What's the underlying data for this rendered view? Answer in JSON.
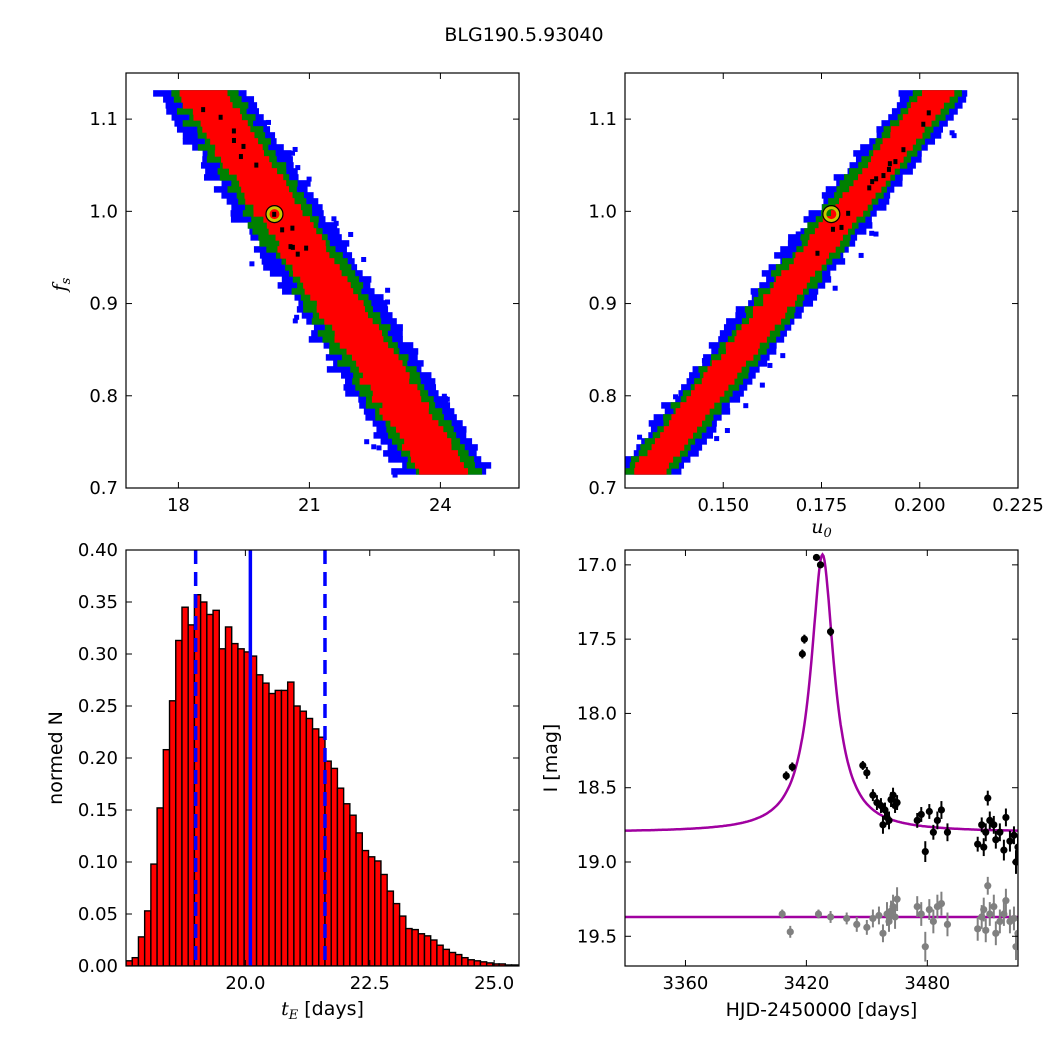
{
  "title": "BLG190.5.93040",
  "colors": {
    "blue": "#0000ff",
    "green": "#008000",
    "red": "#ff0000",
    "black": "#000000",
    "marker": "#c8c800",
    "model": "#a000a0",
    "gray": "#808080",
    "hist_fill": "#ff0000"
  },
  "chart_data": [
    {
      "type": "heatmap",
      "name": "fs-vs-tE",
      "xlabel": "",
      "ylabel": "f_s",
      "ylabel_display": "f",
      "ylabel_sub": "s",
      "xlim": [
        16.8,
        25.8
      ],
      "ylim": [
        0.7,
        1.15
      ],
      "xticks": [
        18,
        21,
        24
      ],
      "xtick_labels": [
        "18",
        "21",
        "24"
      ],
      "yticks": [
        0.7,
        0.8,
        0.9,
        1.0,
        1.1
      ],
      "ytick_labels": [
        "0.7",
        "0.8",
        "0.9",
        "1.0",
        "1.1"
      ],
      "band": {
        "fs_at_x0": 1.13,
        "x0": 18.5,
        "slope": -0.074,
        "widths_x": {
          "blue": 1.05,
          "green": 0.78,
          "red": 0.55
        },
        "fs_range": [
          0.715,
          1.13
        ]
      },
      "best_fit": {
        "x": 20.2,
        "y": 0.997
      }
    },
    {
      "type": "heatmap",
      "name": "fs-vs-u0",
      "xlabel": "u_0",
      "xlabel_display": "u",
      "xlabel_sub": "0",
      "ylabel": "",
      "xlim": [
        0.125,
        0.225
      ],
      "ylim": [
        0.7,
        1.15
      ],
      "xticks": [
        0.15,
        0.175,
        0.2,
        0.225
      ],
      "xtick_labels": [
        "0.150",
        "0.175",
        "0.200",
        "0.225"
      ],
      "yticks": [
        0.7,
        0.8,
        0.9,
        1.0,
        1.1
      ],
      "ytick_labels": [
        "0.7",
        "0.8",
        "0.9",
        "1.0",
        "1.1"
      ],
      "band": {
        "fs_at_x0": 0.72,
        "x0": 0.132,
        "slope": 5.6,
        "widths_x": {
          "blue": 0.0085,
          "green": 0.0063,
          "red": 0.0042
        },
        "fs_range": [
          0.715,
          1.13
        ]
      },
      "best_fit": {
        "x": 0.1775,
        "y": 0.997
      }
    },
    {
      "type": "bar",
      "name": "tE-histogram",
      "xlabel": "t_E",
      "xlabel_display": "t",
      "xlabel_sub": "E",
      "xlabel_unit": " [days]",
      "ylabel": "normed N",
      "xlim": [
        17.6,
        25.5
      ],
      "ylim": [
        0.0,
        0.4
      ],
      "xticks": [
        20.0,
        22.5,
        25.0
      ],
      "xtick_labels": [
        "20.0",
        "22.5",
        "25.0"
      ],
      "yticks": [
        0.0,
        0.05,
        0.1,
        0.15,
        0.2,
        0.25,
        0.3,
        0.35,
        0.4
      ],
      "ytick_labels": [
        "0.00",
        "0.05",
        "0.10",
        "0.15",
        "0.20",
        "0.25",
        "0.30",
        "0.35",
        "0.40"
      ],
      "bin_start": 17.6,
      "bin_width": 0.125,
      "values": [
        0.005,
        0.008,
        0.028,
        0.053,
        0.098,
        0.152,
        0.208,
        0.255,
        0.313,
        0.345,
        0.328,
        0.357,
        0.35,
        0.338,
        0.342,
        0.305,
        0.326,
        0.31,
        0.305,
        0.302,
        0.298,
        0.28,
        0.272,
        0.262,
        0.265,
        0.265,
        0.273,
        0.25,
        0.245,
        0.238,
        0.228,
        0.22,
        0.197,
        0.19,
        0.171,
        0.156,
        0.145,
        0.128,
        0.111,
        0.105,
        0.101,
        0.088,
        0.072,
        0.06,
        0.048,
        0.036,
        0.035,
        0.031,
        0.029,
        0.025,
        0.02,
        0.016,
        0.013,
        0.011,
        0.008,
        0.006,
        0.005,
        0.004,
        0.003,
        0.002,
        0.002,
        0.001,
        0.001
      ],
      "vlines": [
        {
          "x": 20.1,
          "style": "solid"
        },
        {
          "x": 19.0,
          "style": "dashed"
        },
        {
          "x": 21.6,
          "style": "dashed"
        }
      ]
    },
    {
      "type": "scatter",
      "name": "light-curve",
      "xlabel": "HJD-2450000 [days]",
      "ylabel": "I [mag]",
      "xlim": [
        3330,
        3525
      ],
      "ylim": [
        19.7,
        16.9
      ],
      "xticks": [
        3360,
        3420,
        3480
      ],
      "xtick_labels": [
        "3360",
        "3420",
        "3480"
      ],
      "yticks": [
        17.0,
        17.5,
        18.0,
        18.5,
        19.0,
        19.5
      ],
      "ytick_labels": [
        "17.0",
        "17.5",
        "18.0",
        "18.5",
        "19.0",
        "19.5"
      ],
      "model": {
        "t0": 3428.0,
        "peak": 16.93,
        "base": 18.8,
        "width": 4.6
      },
      "baseline_model": 19.37,
      "series": [
        {
          "color": "black",
          "points": [
            [
              3425,
              16.95
            ],
            [
              3427,
              17.0
            ],
            [
              3419,
              17.5
            ],
            [
              3418,
              17.6
            ],
            [
              3432,
              17.45
            ],
            [
              3410,
              18.42
            ],
            [
              3413,
              18.36
            ],
            [
              3448,
              18.35
            ],
            [
              3450,
              18.4
            ],
            [
              3453,
              18.55
            ],
            [
              3455,
              18.6
            ],
            [
              3457,
              18.62
            ],
            [
              3459,
              18.65
            ],
            [
              3460,
              18.7
            ],
            [
              3462,
              18.58
            ],
            [
              3463,
              18.55
            ],
            [
              3464,
              18.62
            ],
            [
              3465,
              18.6
            ],
            [
              3458,
              18.75
            ],
            [
              3461,
              18.72
            ],
            [
              3475,
              18.72
            ],
            [
              3477,
              18.68
            ],
            [
              3479,
              18.93
            ],
            [
              3481,
              18.66
            ],
            [
              3483,
              18.8
            ],
            [
              3485,
              18.72
            ],
            [
              3487,
              18.65
            ],
            [
              3490,
              18.8
            ],
            [
              3505,
              18.88
            ],
            [
              3507,
              18.75
            ],
            [
              3508,
              18.9
            ],
            [
              3509,
              18.8
            ],
            [
              3510,
              18.57
            ],
            [
              3511,
              18.72
            ],
            [
              3513,
              18.75
            ],
            [
              3514,
              18.85
            ],
            [
              3516,
              18.8
            ],
            [
              3518,
              18.92
            ],
            [
              3519,
              18.7
            ],
            [
              3521,
              18.86
            ],
            [
              3523,
              18.82
            ],
            [
              3524,
              19.0
            ],
            [
              3525,
              18.9
            ]
          ],
          "errors": [
            0.02,
            0.02,
            0.03,
            0.03,
            0.03,
            0.03,
            0.03,
            0.03,
            0.04,
            0.04,
            0.05,
            0.05,
            0.05,
            0.05,
            0.05,
            0.05,
            0.05,
            0.05,
            0.06,
            0.06,
            0.05,
            0.05,
            0.07,
            0.05,
            0.05,
            0.06,
            0.06,
            0.06,
            0.05,
            0.05,
            0.06,
            0.06,
            0.05,
            0.06,
            0.06,
            0.06,
            0.06,
            0.07,
            0.06,
            0.07,
            0.06,
            0.08,
            0.08
          ]
        },
        {
          "color": "gray",
          "points": [
            [
              3408,
              19.35
            ],
            [
              3412,
              19.47
            ],
            [
              3426,
              19.35
            ],
            [
              3432,
              19.37
            ],
            [
              3440,
              19.38
            ],
            [
              3445,
              19.42
            ],
            [
              3450,
              19.44
            ],
            [
              3453,
              19.38
            ],
            [
              3456,
              19.36
            ],
            [
              3458,
              19.48
            ],
            [
              3460,
              19.35
            ],
            [
              3461,
              19.4
            ],
            [
              3462,
              19.33
            ],
            [
              3463,
              19.3
            ],
            [
              3464,
              19.37
            ],
            [
              3465,
              19.25
            ],
            [
              3475,
              19.3
            ],
            [
              3477,
              19.35
            ],
            [
              3479,
              19.57
            ],
            [
              3481,
              19.32
            ],
            [
              3483,
              19.4
            ],
            [
              3485,
              19.3
            ],
            [
              3487,
              19.28
            ],
            [
              3490,
              19.42
            ],
            [
              3505,
              19.45
            ],
            [
              3507,
              19.37
            ],
            [
              3508,
              19.32
            ],
            [
              3509,
              19.46
            ],
            [
              3510,
              19.16
            ],
            [
              3511,
              19.35
            ],
            [
              3513,
              19.3
            ],
            [
              3514,
              19.48
            ],
            [
              3516,
              19.4
            ],
            [
              3518,
              19.35
            ],
            [
              3519,
              19.26
            ],
            [
              3521,
              19.4
            ],
            [
              3523,
              19.38
            ],
            [
              3524,
              19.57
            ],
            [
              3525,
              19.48
            ]
          ],
          "errors": [
            0.03,
            0.04,
            0.03,
            0.04,
            0.04,
            0.05,
            0.05,
            0.06,
            0.06,
            0.06,
            0.08,
            0.07,
            0.07,
            0.08,
            0.08,
            0.08,
            0.07,
            0.08,
            0.1,
            0.07,
            0.08,
            0.08,
            0.08,
            0.08,
            0.08,
            0.08,
            0.08,
            0.08,
            0.06,
            0.08,
            0.08,
            0.08,
            0.08,
            0.08,
            0.08,
            0.08,
            0.08,
            0.09,
            0.09
          ]
        }
      ]
    }
  ]
}
